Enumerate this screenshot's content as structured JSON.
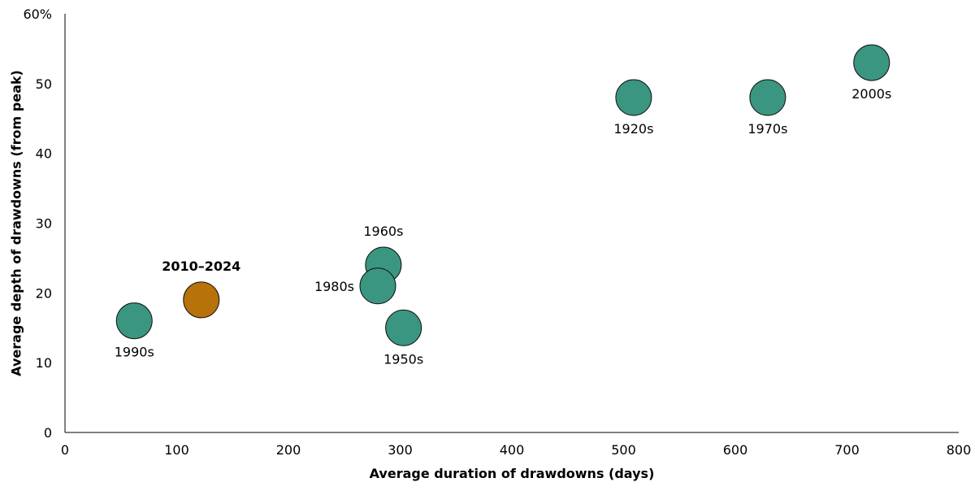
{
  "chart_data": {
    "type": "scatter",
    "xlabel": "Average duration of drawdowns (days)",
    "ylabel": "Average depth of drawdowns (from peak)",
    "xlim": [
      0,
      800
    ],
    "ylim": [
      0,
      60
    ],
    "x_ticks": [
      {
        "value": 0,
        "label": "0"
      },
      {
        "value": 100,
        "label": "100"
      },
      {
        "value": 200,
        "label": "200"
      },
      {
        "value": 300,
        "label": "300"
      },
      {
        "value": 400,
        "label": "400"
      },
      {
        "value": 500,
        "label": "500"
      },
      {
        "value": 600,
        "label": "600"
      },
      {
        "value": 700,
        "label": "700"
      },
      {
        "value": 800,
        "label": "800"
      }
    ],
    "y_ticks": [
      {
        "value": 0,
        "label": "0"
      },
      {
        "value": 10,
        "label": "10"
      },
      {
        "value": 20,
        "label": "20"
      },
      {
        "value": 30,
        "label": "30"
      },
      {
        "value": 40,
        "label": "40"
      },
      {
        "value": 50,
        "label": "50"
      },
      {
        "value": 60,
        "label": "60%"
      }
    ],
    "grid": false,
    "legend": "none",
    "colors": {
      "decade": "#3a9680",
      "highlight": "#b8720a",
      "outline": "#111111"
    },
    "points": [
      {
        "label": "1990s",
        "x": 62,
        "y": 16,
        "highlight": false,
        "label_position": "below",
        "bold": false
      },
      {
        "label": "2010–2024",
        "x": 122,
        "y": 19,
        "highlight": true,
        "label_position": "above",
        "bold": true
      },
      {
        "label": "1960s",
        "x": 285,
        "y": 24,
        "highlight": false,
        "label_position": "above",
        "bold": false
      },
      {
        "label": "1980s",
        "x": 280,
        "y": 21,
        "highlight": false,
        "label_position": "left",
        "bold": false
      },
      {
        "label": "1950s",
        "x": 303,
        "y": 15,
        "highlight": false,
        "label_position": "below",
        "bold": false
      },
      {
        "label": "1920s",
        "x": 509,
        "y": 48,
        "highlight": false,
        "label_position": "below",
        "bold": false
      },
      {
        "label": "1970s",
        "x": 629,
        "y": 48,
        "highlight": false,
        "label_position": "below",
        "bold": false
      },
      {
        "label": "2000s",
        "x": 722,
        "y": 53,
        "highlight": false,
        "label_position": "below",
        "bold": false
      }
    ]
  }
}
